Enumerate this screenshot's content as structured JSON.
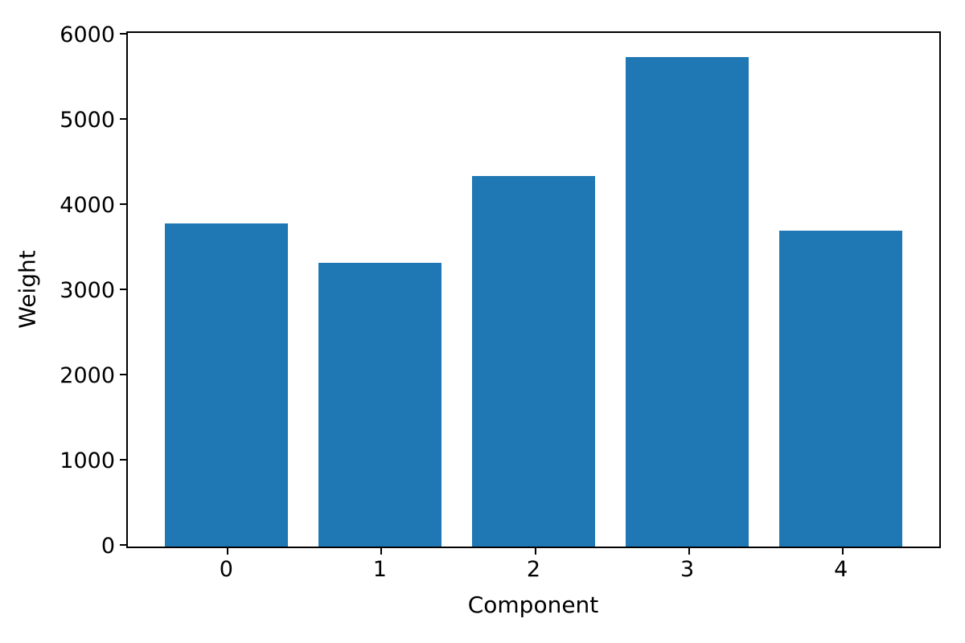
{
  "figure": {
    "background_color": "#ffffff",
    "bar_color": "#1f77b4",
    "axis_color": "#000000",
    "text_color": "#000000"
  },
  "chart_data": {
    "type": "bar",
    "title": "",
    "xlabel": "Component",
    "ylabel": "Weight",
    "categories": [
      "0",
      "1",
      "2",
      "3",
      "4"
    ],
    "values": [
      3790,
      3330,
      4350,
      5740,
      3710
    ],
    "xtick_labels": [
      "0",
      "1",
      "2",
      "3",
      "4"
    ],
    "yticks": [
      0,
      1000,
      2000,
      3000,
      4000,
      5000,
      6000
    ],
    "ytick_labels": [
      "0",
      "1000",
      "2000",
      "3000",
      "4000",
      "5000",
      "6000"
    ],
    "xlim": [
      -0.64,
      4.64
    ],
    "ylim": [
      0,
      6027
    ],
    "bar_width": 0.8,
    "grid": false,
    "legend_position": "none"
  }
}
